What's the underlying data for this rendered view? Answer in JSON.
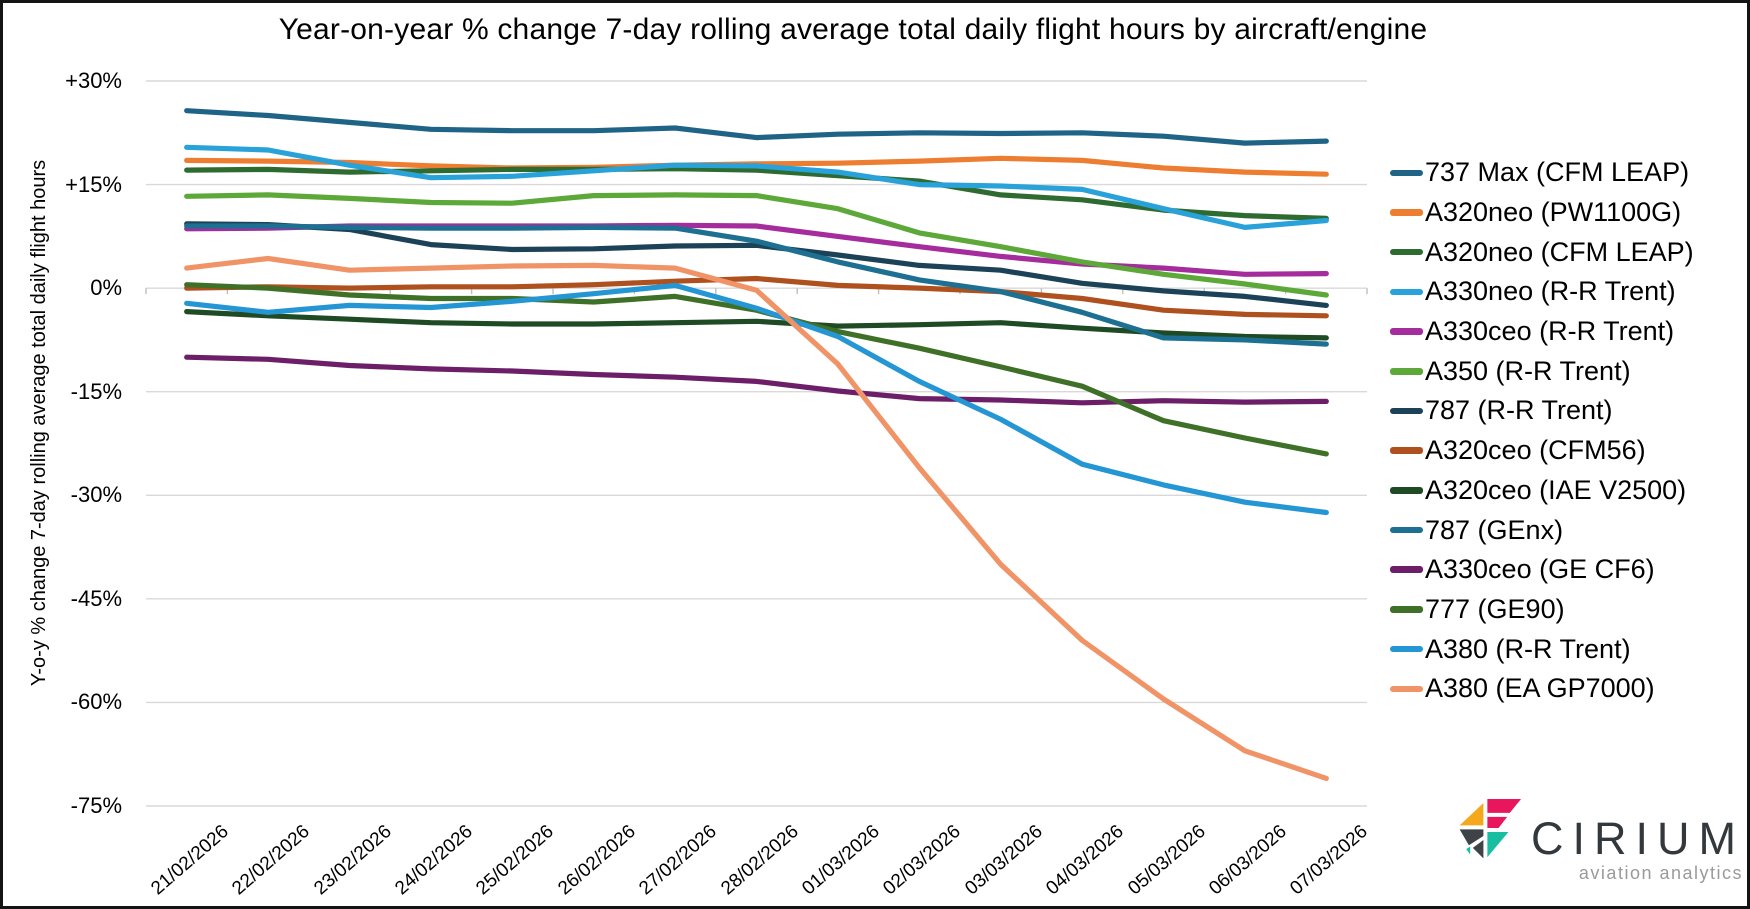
{
  "title": "Year-on-year % change 7-day rolling average total daily flight hours by aircraft/engine",
  "y_axis_title": "Y-o-y % change 7-day rolling average total daily flight hours",
  "logo": {
    "name": "CIRIUM",
    "tagline": "aviation analytics"
  },
  "chart_data": {
    "type": "line",
    "title": "Year-on-year % change 7-day rolling average total daily flight hours by aircraft/engine",
    "xlabel": "",
    "ylabel": "Y-o-y % change 7-day rolling average total daily flight hours",
    "x": [
      "21/02/2026",
      "22/02/2026",
      "23/02/2026",
      "24/02/2026",
      "25/02/2026",
      "26/02/2026",
      "27/02/2026",
      "28/02/2026",
      "01/03/2026",
      "02/03/2026",
      "03/03/2026",
      "04/03/2026",
      "05/03/2026",
      "06/03/2026",
      "07/03/2026"
    ],
    "y_tick_labels": [
      "+30%",
      "+15%",
      "0%",
      "-15%",
      "-30%",
      "-45%",
      "-60%",
      "-75%"
    ],
    "y_tick_values": [
      30,
      15,
      0,
      -15,
      -30,
      -45,
      -60,
      -75
    ],
    "ylim": [
      -75,
      30
    ],
    "grid": true,
    "legend_position": "right",
    "gridline_color": "#d9d9d9",
    "axis_tick_color": "#bfbfbf",
    "series": [
      {
        "name": "737 Max (CFM LEAP)",
        "color": "#1F6487",
        "values": [
          25.7,
          25.0,
          24.0,
          23.0,
          22.8,
          22.8,
          23.2,
          21.8,
          22.3,
          22.5,
          22.4,
          22.5,
          22.0,
          21.0,
          21.3
        ]
      },
      {
        "name": "A320neo (PW1100G)",
        "color": "#ED7D31",
        "values": [
          18.5,
          18.4,
          18.2,
          17.7,
          17.4,
          17.5,
          17.8,
          18.0,
          18.1,
          18.4,
          18.8,
          18.5,
          17.4,
          16.8,
          16.5
        ]
      },
      {
        "name": "A320neo (CFM LEAP)",
        "color": "#2E6B30",
        "values": [
          17.1,
          17.2,
          16.8,
          17.0,
          17.2,
          17.2,
          17.3,
          17.1,
          16.3,
          15.5,
          13.5,
          12.8,
          11.3,
          10.5,
          10.1
        ]
      },
      {
        "name": "A330neo (R-R Trent)",
        "color": "#29A2D9",
        "values": [
          20.4,
          20.0,
          17.8,
          16.0,
          16.2,
          17.0,
          17.8,
          17.7,
          16.8,
          15.0,
          14.8,
          14.3,
          11.5,
          8.8,
          9.8
        ]
      },
      {
        "name": "A330ceo (R-R Trent)",
        "color": "#A42C9C",
        "values": [
          8.6,
          8.7,
          9.0,
          9.0,
          9.0,
          9.0,
          9.1,
          9.0,
          7.5,
          6.0,
          4.6,
          3.5,
          2.9,
          2.0,
          2.1
        ]
      },
      {
        "name": "A350 (R-R Trent)",
        "color": "#5CA838",
        "values": [
          13.3,
          13.5,
          13.0,
          12.4,
          12.3,
          13.4,
          13.5,
          13.4,
          11.5,
          8.0,
          6.0,
          3.8,
          2.0,
          0.6,
          -1.0
        ]
      },
      {
        "name": "787 (R-R Trent)",
        "color": "#1C4257",
        "values": [
          9.3,
          9.2,
          8.5,
          6.3,
          5.6,
          5.7,
          6.1,
          6.2,
          4.8,
          3.3,
          2.6,
          0.7,
          -0.4,
          -1.2,
          -2.5
        ]
      },
      {
        "name": "A320ceo (CFM56)",
        "color": "#AE511F",
        "values": [
          0.0,
          0.2,
          0.0,
          0.2,
          0.2,
          0.5,
          1.0,
          1.4,
          0.4,
          0.0,
          -0.5,
          -1.5,
          -3.2,
          -3.8,
          -4.0
        ]
      },
      {
        "name": "A320ceo (IAE V2500)",
        "color": "#1E4A24",
        "values": [
          -3.4,
          -4.0,
          -4.5,
          -5.0,
          -5.2,
          -5.2,
          -5.0,
          -4.8,
          -5.5,
          -5.3,
          -5.0,
          -5.8,
          -6.5,
          -7.0,
          -7.2
        ]
      },
      {
        "name": "787 (GEnx)",
        "color": "#1D7092",
        "values": [
          9.0,
          9.0,
          8.8,
          8.7,
          8.7,
          8.8,
          8.7,
          6.8,
          3.8,
          1.2,
          -0.5,
          -3.5,
          -7.2,
          -7.5,
          -8.1
        ]
      },
      {
        "name": "A330ceo (GE CF6)",
        "color": "#6C1F68",
        "values": [
          -10.0,
          -10.3,
          -11.2,
          -11.7,
          -12.0,
          -12.5,
          -12.9,
          -13.5,
          -14.9,
          -16.0,
          -16.2,
          -16.6,
          -16.3,
          -16.5,
          -16.4
        ]
      },
      {
        "name": "777 (GE90)",
        "color": "#3F7028",
        "values": [
          0.5,
          0.0,
          -1.0,
          -1.5,
          -1.5,
          -2.0,
          -1.2,
          -3.2,
          -6.3,
          -8.7,
          -11.4,
          -14.2,
          -19.2,
          -21.7,
          -24.0
        ]
      },
      {
        "name": "A380 (R-R Trent)",
        "color": "#2596D4",
        "values": [
          -2.2,
          -3.5,
          -2.5,
          -2.8,
          -1.9,
          -0.8,
          0.4,
          -2.9,
          -7.0,
          -13.5,
          -19.0,
          -25.5,
          -28.5,
          -31.0,
          -32.5
        ]
      },
      {
        "name": "A380 (EA GP7000)",
        "color": "#F09468",
        "values": [
          2.9,
          4.3,
          2.6,
          2.9,
          3.2,
          3.3,
          2.9,
          -0.3,
          -11.0,
          -26.0,
          -40.0,
          -51.0,
          -59.5,
          -67.0,
          -71.0
        ]
      }
    ],
    "logo_colors": {
      "yellow": "#F5A81C",
      "crimson": "#E8175D",
      "gray": "#3E4347",
      "teal": "#17BEA2"
    }
  }
}
